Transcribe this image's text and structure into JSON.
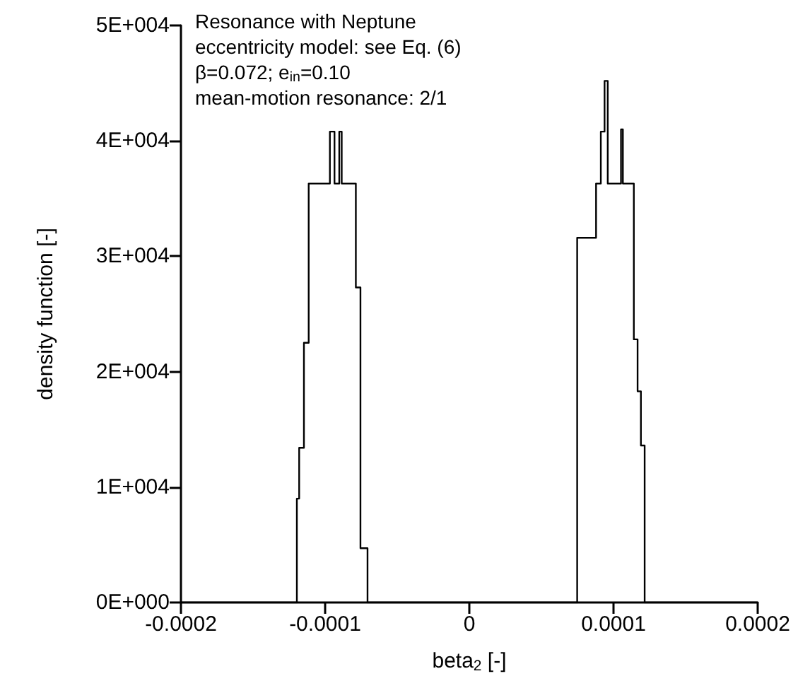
{
  "chart_data": {
    "type": "step",
    "xlabel": "beta$_{2}$ [-]",
    "ylabel": "density function [-]",
    "annotations": [
      "Resonance with Neptune",
      "eccentricity model: see Eq. (6)",
      "β=0.072; e$_{in}$=0.10",
      "mean-motion resonance: 2/1"
    ],
    "series": [
      {
        "color": "#000000",
        "x": [
          -0.0002,
          -0.000121,
          -0.0001196,
          -0.000118,
          -0.0001147,
          -0.0001114,
          -9.67e-05,
          -9.35e-05,
          -9.02e-05,
          -8.85e-05,
          -7.87e-05,
          -7.55e-05,
          -7.06e-05,
          7.35e-05,
          7.48e-05,
          8.79e-05,
          9.12e-05,
          9.38e-05,
          9.6e-05,
          0.0001052,
          0.0001065,
          0.0001141,
          0.0001167,
          0.000119,
          0.0001216,
          0.0002
        ],
        "values": [
          0,
          0,
          9000,
          13400,
          22500,
          36300,
          40800,
          36300,
          40800,
          36300,
          27300,
          4700,
          0,
          0,
          31600,
          36300,
          40800,
          45200,
          36300,
          41000,
          36300,
          22800,
          18300,
          13600,
          0,
          0
        ]
      }
    ],
    "xlim": [
      -0.0002,
      0.0002
    ],
    "xticks": [
      -0.0002,
      -0.0001,
      0,
      0.0001,
      0.0002
    ],
    "ylim": [
      0,
      50000
    ],
    "yticks": [
      {
        "value": 0,
        "label": "0E+000"
      },
      {
        "value": 10000,
        "label": "1E+004"
      },
      {
        "value": 20000,
        "label": "2E+004"
      },
      {
        "value": 30000,
        "label": "3E+004"
      },
      {
        "value": 40000,
        "label": "4E+004"
      },
      {
        "value": 50000,
        "label": "5E+004"
      }
    ],
    "marker": "none",
    "line_style": "solid"
  }
}
